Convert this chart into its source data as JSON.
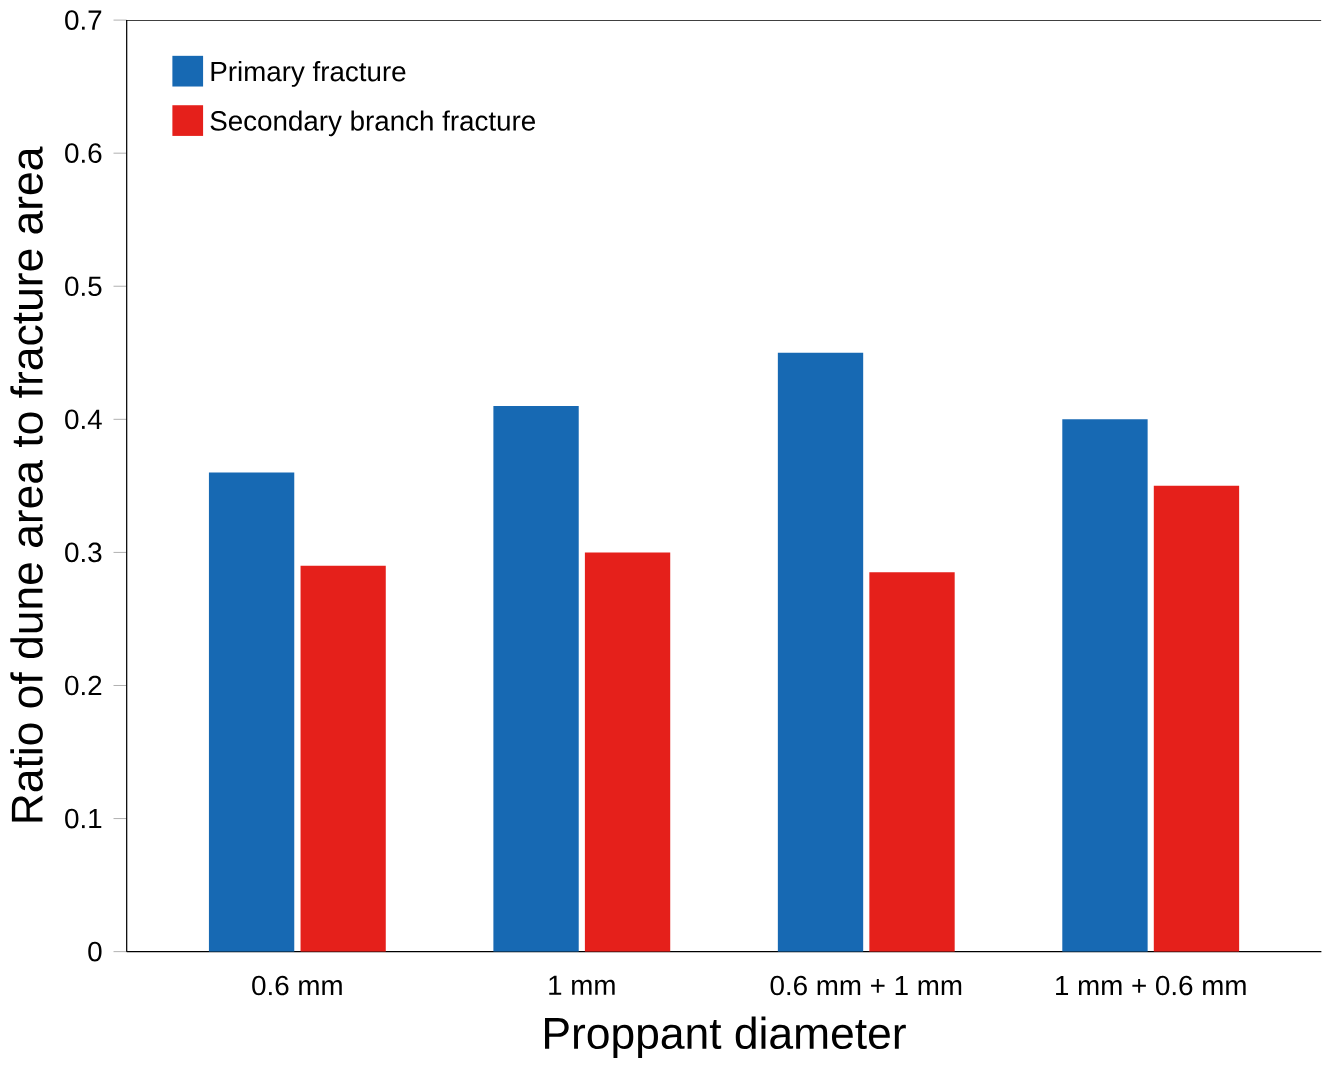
{
  "chart_data": {
    "type": "bar",
    "xlabel": "Proppant diameter",
    "ylabel": "Ratio of dune area to fracture area",
    "categories": [
      "0.6 mm",
      "1 mm",
      "0.6 mm + 1 mm",
      "1 mm + 0.6 mm"
    ],
    "series": [
      {
        "name": "Primary fracture",
        "color": "#1769b3",
        "values": [
          0.36,
          0.41,
          0.45,
          0.4
        ]
      },
      {
        "name": "Secondary branch fracture",
        "color": "#e5201b",
        "values": [
          0.29,
          0.3,
          0.285,
          0.35
        ]
      }
    ],
    "ylim": [
      0,
      0.7
    ],
    "yticks": [
      0,
      0.1,
      0.2,
      0.3,
      0.4,
      0.5,
      0.6,
      0.7
    ],
    "grid": false,
    "legend": "top left"
  }
}
